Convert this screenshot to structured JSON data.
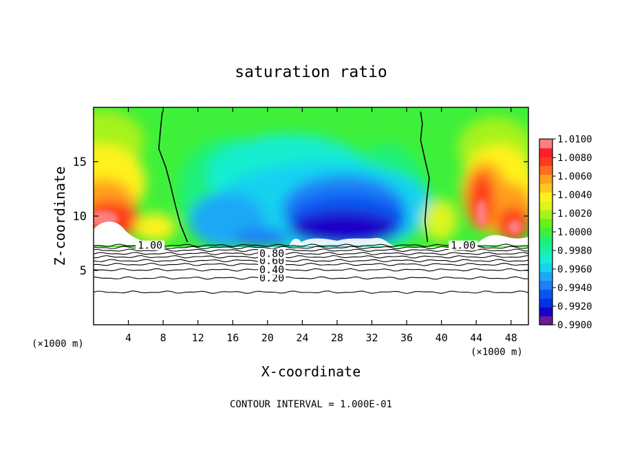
{
  "chart_data": {
    "type": "heatmap",
    "title": "saturation ratio",
    "xlabel": "X-coordinate",
    "ylabel": "Z-coordinate",
    "x_unit_left": "(×1000 m)",
    "x_unit_right": "(×1000 m)",
    "footer": "CONTOUR INTERVAL = 1.000E-01",
    "xlim": [
      0,
      50
    ],
    "ylim": [
      0,
      20
    ],
    "x_ticks": [
      4,
      8,
      12,
      16,
      20,
      24,
      28,
      32,
      36,
      40,
      44,
      48
    ],
    "x_tick_labels": [
      "4",
      "8",
      "12",
      "16",
      "20",
      "24",
      "28",
      "32",
      "36",
      "40",
      "44",
      "48"
    ],
    "y_ticks": [
      5,
      10,
      15
    ],
    "y_tick_labels": [
      "5",
      "10",
      "15"
    ],
    "colorbar": {
      "min": 0.99,
      "max": 1.01,
      "step": 0.001,
      "tick_values": [
        1.01,
        1.008,
        1.006,
        1.004,
        1.002,
        1.0,
        0.998,
        0.996,
        0.994,
        0.992,
        0.99
      ],
      "tick_labels": [
        "1.0100",
        "1.0080",
        "1.0060",
        "1.0040",
        "1.0020",
        "1.0000",
        "0.9980",
        "0.9960",
        "0.9940",
        "0.9920",
        "0.9900"
      ],
      "colors": [
        "#6a1b9a",
        "#1a00c8",
        "#0033e6",
        "#0a55f0",
        "#1f7ff5",
        "#1da8f5",
        "#18d2f0",
        "#17eecf",
        "#19f0a4",
        "#1df078",
        "#3ef03a",
        "#68f01c",
        "#a6f21c",
        "#dcf51c",
        "#fff21c",
        "#ffc81e",
        "#ffa01e",
        "#ff6f1e",
        "#ff3a1e",
        "#ff1e2e",
        "#ff7f7f"
      ]
    },
    "contour_lines": [
      {
        "z": 3.0,
        "label": ""
      },
      {
        "z": 4.3,
        "label": "0.20"
      },
      {
        "z": 5.05,
        "label": "0.40"
      },
      {
        "z": 5.55,
        "label": ""
      },
      {
        "z": 5.9,
        "label": "0.60"
      },
      {
        "z": 6.25,
        "label": ""
      },
      {
        "z": 6.55,
        "label": "0.80"
      },
      {
        "z": 6.85,
        "label": ""
      },
      {
        "z": 7.1,
        "label": ""
      },
      {
        "z": 7.3,
        "label": "1.00"
      }
    ],
    "supersaturation_boundary": {
      "label": "1.00",
      "left": [
        [
          7.9,
          19.6
        ],
        [
          7.7,
          18
        ],
        [
          7.5,
          16.2
        ],
        [
          8.3,
          14.5
        ],
        [
          8.8,
          13
        ],
        [
          9.4,
          11
        ],
        [
          10,
          9.2
        ],
        [
          10.8,
          7.6
        ]
      ],
      "right": [
        [
          37.6,
          19.6
        ],
        [
          37.8,
          18.5
        ],
        [
          37.6,
          17
        ],
        [
          38.1,
          15.2
        ],
        [
          38.6,
          13.5
        ],
        [
          38.3,
          11.5
        ],
        [
          38.1,
          9.5
        ],
        [
          38.4,
          7.6
        ]
      ]
    }
  }
}
